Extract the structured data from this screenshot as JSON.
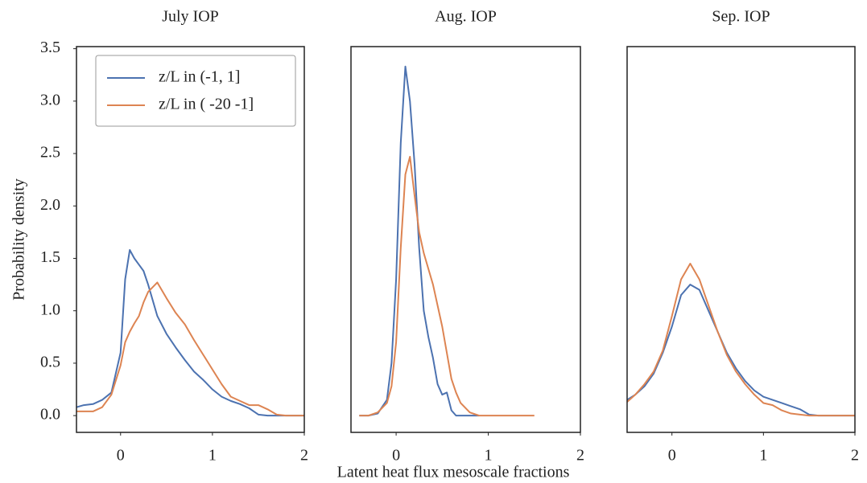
{
  "chart_data": [
    {
      "type": "line",
      "title": "July IOP",
      "ylabel": "Probability density",
      "legend": "upper left",
      "x": [
        -0.48,
        -0.4,
        -0.3,
        -0.2,
        -0.1,
        0,
        0.05,
        0.1,
        0.15,
        0.2,
        0.25,
        0.3,
        0.4,
        0.5,
        0.6,
        0.7,
        0.8,
        0.9,
        1.0,
        1.1,
        1.2,
        1.3,
        1.4,
        1.5,
        1.6,
        1.7,
        1.8,
        2.0
      ],
      "series": [
        {
          "name": "z/L in (-1, 1]",
          "color": "#4c72b0",
          "values": [
            0.08,
            0.1,
            0.11,
            0.15,
            0.22,
            0.6,
            1.3,
            1.58,
            1.5,
            1.44,
            1.38,
            1.25,
            0.95,
            0.78,
            0.65,
            0.53,
            0.42,
            0.34,
            0.25,
            0.18,
            0.14,
            0.11,
            0.07,
            0.01,
            0,
            0,
            0,
            0
          ]
        },
        {
          "name": "z/L in ( -20 -1]",
          "color": "#dd8452",
          "values": [
            0.04,
            0.04,
            0.04,
            0.08,
            0.2,
            0.48,
            0.7,
            0.8,
            0.88,
            0.95,
            1.08,
            1.18,
            1.27,
            1.12,
            0.98,
            0.87,
            0.72,
            0.58,
            0.44,
            0.3,
            0.18,
            0.14,
            0.1,
            0.1,
            0.06,
            0.01,
            0,
            0
          ]
        }
      ],
      "xlim": [
        -0.48,
        2
      ],
      "ylim": [
        -0.16,
        3.52
      ],
      "xticks": [
        0,
        1,
        2
      ],
      "yticks": [
        {
          "value": 0,
          "label": "0.0"
        },
        0.5,
        {
          "value": 1,
          "label": "1.0"
        },
        1.5,
        {
          "value": 2,
          "label": "2.0"
        },
        2.5,
        {
          "value": 3,
          "label": "3.0"
        },
        3.5
      ]
    },
    {
      "type": "line",
      "title": "Aug. IOP",
      "xlabel": "Latent heat flux mesoscale fractions",
      "x": [
        -0.4,
        -0.3,
        -0.2,
        -0.1,
        -0.05,
        0,
        0.05,
        0.1,
        0.15,
        0.2,
        0.25,
        0.3,
        0.35,
        0.4,
        0.45,
        0.5,
        0.55,
        0.6,
        0.65,
        0.7,
        0.8,
        0.9,
        1.0,
        1.2,
        1.5
      ],
      "series": [
        {
          "color": "#4c72b0",
          "values": [
            0,
            0,
            0.02,
            0.15,
            0.5,
            1.3,
            2.6,
            3.33,
            3.0,
            2.4,
            1.6,
            1.0,
            0.75,
            0.55,
            0.3,
            0.2,
            0.22,
            0.05,
            0,
            0,
            0,
            0,
            null,
            null,
            null
          ]
        },
        {
          "color": "#dd8452",
          "values": [
            0,
            0,
            0.03,
            0.12,
            0.28,
            0.7,
            1.6,
            2.3,
            2.47,
            2.1,
            1.75,
            1.55,
            1.4,
            1.25,
            1.05,
            0.85,
            0.6,
            0.35,
            0.22,
            0.12,
            0.03,
            0,
            0,
            0,
            0
          ]
        }
      ],
      "xlim": [
        -0.49,
        2
      ],
      "ylim": [
        -0.16,
        3.52
      ],
      "xticks": [
        0,
        1,
        2
      ]
    },
    {
      "type": "line",
      "title": "Sep. IOP",
      "x": [
        -0.49,
        -0.4,
        -0.3,
        -0.2,
        -0.1,
        0,
        0.1,
        0.2,
        0.3,
        0.4,
        0.5,
        0.6,
        0.7,
        0.8,
        0.9,
        1.0,
        1.1,
        1.2,
        1.3,
        1.4,
        1.5,
        1.6,
        1.8,
        2.0
      ],
      "series": [
        {
          "color": "#4c72b0",
          "values": [
            0.15,
            0.2,
            0.28,
            0.4,
            0.6,
            0.85,
            1.15,
            1.25,
            1.2,
            1.0,
            0.8,
            0.6,
            0.45,
            0.33,
            0.24,
            0.18,
            0.15,
            0.12,
            0.09,
            0.06,
            0.01,
            0,
            0,
            0
          ]
        },
        {
          "color": "#dd8452",
          "values": [
            0.13,
            0.2,
            0.3,
            0.42,
            0.62,
            0.95,
            1.3,
            1.45,
            1.3,
            1.05,
            0.8,
            0.58,
            0.42,
            0.3,
            0.2,
            0.12,
            0.1,
            0.05,
            0.02,
            0.01,
            0,
            0,
            0,
            0
          ]
        }
      ],
      "xlim": [
        -0.49,
        2
      ],
      "ylim": [
        -0.16,
        3.52
      ],
      "xticks": [
        0,
        1,
        2
      ]
    }
  ]
}
